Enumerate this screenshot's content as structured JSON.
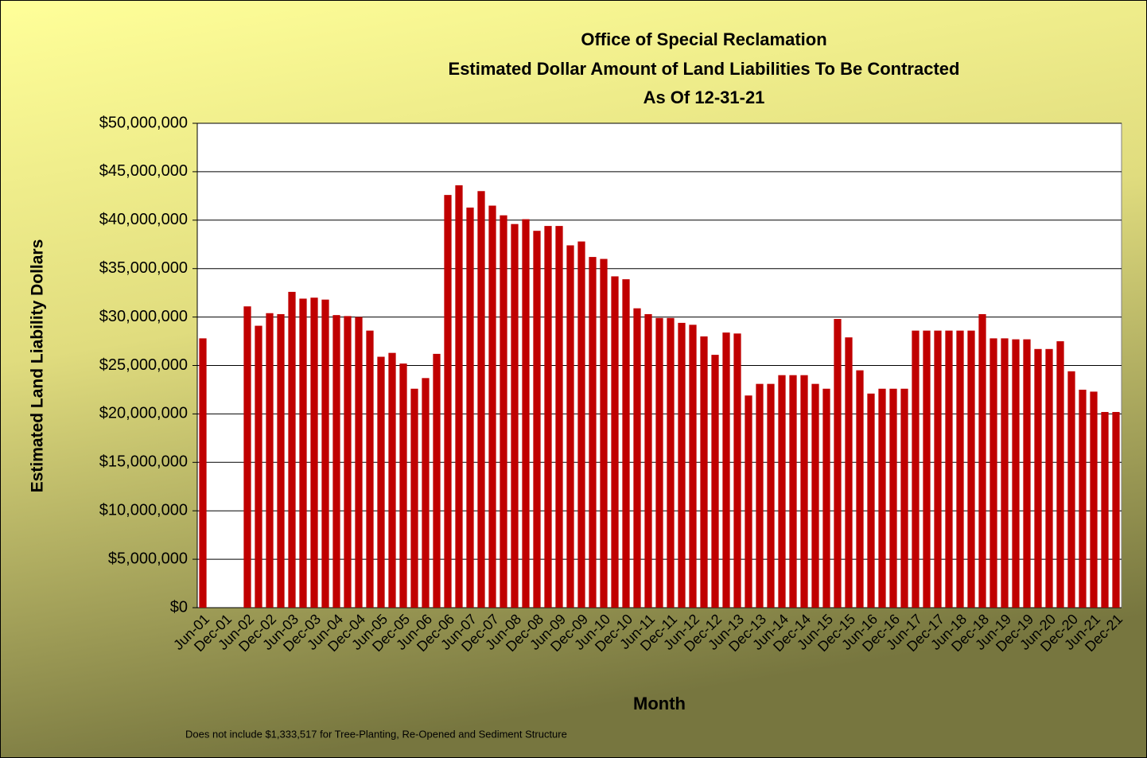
{
  "chart_data": {
    "type": "bar",
    "title": [
      "Office of Special Reclamation",
      "Estimated Dollar Amount of Land Liabilities To Be Contracted",
      "As Of 12-31-21"
    ],
    "x_label": "Month",
    "y_label": "Estimated Land Liability Dollars",
    "note": "Does not include $1,333,517 for Tree-Planting, Re-Opened and Sediment Structure",
    "color": "#c00000",
    "grid": true,
    "categories": [
      "Jun-01",
      null,
      "Dec-01",
      null,
      "Jun-02",
      null,
      "Dec-02",
      null,
      "Jun-03",
      null,
      "Dec-03",
      null,
      "Jun-04",
      null,
      "Dec-04",
      null,
      "Jun-05",
      null,
      "Dec-05",
      null,
      "Jun-06",
      null,
      "Dec-06",
      null,
      "Jun-07",
      null,
      "Dec-07",
      null,
      "Jun-08",
      null,
      "Dec-08",
      null,
      "Jun-09",
      null,
      "Dec-09",
      null,
      "Jun-10",
      null,
      "Dec-10",
      null,
      "Jun-11",
      null,
      "Dec-11",
      null,
      "Jun-12",
      null,
      "Dec-12",
      null,
      "Jun-13",
      null,
      "Dec-13",
      null,
      "Jun-14",
      null,
      "Dec-14",
      null,
      "Jun-15",
      null,
      "Dec-15",
      null,
      "Jun-16",
      null,
      "Dec-16",
      null,
      "Jun-17",
      null,
      "Dec-17",
      null,
      "Jun-18",
      null,
      "Dec-18",
      null,
      "Jun-19",
      null,
      "Dec-19",
      null,
      "Jun-20",
      null,
      "Dec-20",
      null,
      "Jun-21",
      null,
      "Dec-21"
    ],
    "values": [
      27800000,
      null,
      null,
      null,
      31100000,
      29100000,
      30400000,
      30300000,
      32600000,
      31900000,
      32000000,
      31800000,
      30200000,
      30100000,
      30000000,
      28600000,
      25900000,
      26300000,
      25200000,
      22600000,
      23700000,
      26200000,
      42600000,
      43600000,
      41300000,
      43000000,
      41500000,
      40500000,
      39600000,
      40100000,
      38900000,
      39400000,
      39400000,
      37400000,
      37800000,
      36200000,
      36000000,
      34200000,
      33900000,
      30900000,
      30300000,
      29900000,
      29900000,
      29400000,
      29200000,
      28000000,
      26100000,
      28400000,
      28300000,
      21900000,
      23100000,
      23100000,
      24000000,
      24000000,
      24000000,
      23100000,
      22600000,
      29800000,
      27900000,
      24500000,
      22100000,
      22600000,
      22600000,
      22600000,
      28600000,
      28600000,
      28600000,
      28600000,
      28600000,
      28600000,
      30300000,
      27800000,
      27800000,
      27700000,
      27700000,
      26700000,
      26700000,
      27500000,
      24400000,
      22500000,
      22300000,
      20200000,
      20200000
    ],
    "ylim": [
      0,
      50000000
    ],
    "yticks": [
      {
        "value": 0,
        "label": "$0"
      },
      {
        "value": 5000000,
        "label": "$5,000,000"
      },
      {
        "value": 10000000,
        "label": "$10,000,000"
      },
      {
        "value": 15000000,
        "label": "$15,000,000"
      },
      {
        "value": 20000000,
        "label": "$20,000,000"
      },
      {
        "value": 25000000,
        "label": "$25,000,000"
      },
      {
        "value": 30000000,
        "label": "$30,000,000"
      },
      {
        "value": 35000000,
        "label": "$35,000,000"
      },
      {
        "value": 40000000,
        "label": "$40,000,000"
      },
      {
        "value": 45000000,
        "label": "$45,000,000"
      },
      {
        "value": 50000000,
        "label": "$50,000,000"
      }
    ]
  }
}
